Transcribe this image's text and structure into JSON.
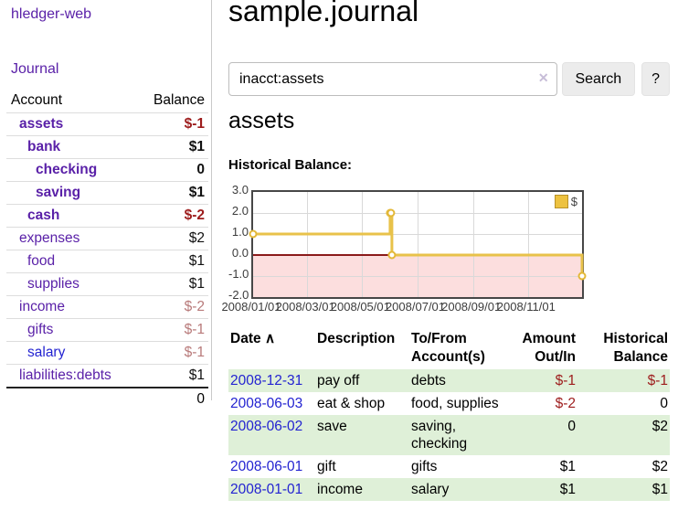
{
  "app": {
    "brand": "hledger-web",
    "nav_journal": "Journal"
  },
  "sidebar": {
    "header": {
      "account": "Account",
      "balance": "Balance"
    },
    "rows": [
      {
        "account": "assets",
        "balance": "$-1"
      },
      {
        "account": "bank",
        "balance": "$1"
      },
      {
        "account": "checking",
        "balance": "0"
      },
      {
        "account": "saving",
        "balance": "$1"
      },
      {
        "account": "cash",
        "balance": "$-2"
      },
      {
        "account": "expenses",
        "balance": "$2"
      },
      {
        "account": "food",
        "balance": "$1"
      },
      {
        "account": "supplies",
        "balance": "$1"
      },
      {
        "account": "income",
        "balance": "$-2"
      },
      {
        "account": "gifts",
        "balance": "$-1"
      },
      {
        "account": "salary",
        "balance": "$-1"
      },
      {
        "account": "liabilities:debts",
        "balance": "$1"
      }
    ],
    "total": "0"
  },
  "header": {
    "title": "sample.journal"
  },
  "search": {
    "value": "inacct:assets",
    "clear_icon": "✕",
    "search_button": "Search",
    "help_button": "?"
  },
  "account_page": {
    "heading": "assets",
    "chart_label": "Historical Balance:"
  },
  "chart_data": {
    "type": "line",
    "step": true,
    "title": "Historical Balance",
    "legend_position": "top-right",
    "legend_label": "$",
    "line_color": "#e8c24a",
    "marker_color": "#e3b838",
    "negative_region_color": "#fcdede",
    "zero_line_color": "#8b1a1a",
    "ylim": [
      -2,
      3
    ],
    "x_range_days": [
      0,
      365
    ],
    "y_ticks": [
      "3.0",
      "2.0",
      "1.0",
      "0.0",
      "-1.0",
      "-2.0"
    ],
    "y_tick_values": [
      3,
      2,
      1,
      0,
      -1,
      -2
    ],
    "x_ticks": [
      {
        "label": "2008/01/01",
        "day": 0
      },
      {
        "label": "2008/03/01",
        "day": 60
      },
      {
        "label": "2008/05/01",
        "day": 121
      },
      {
        "label": "2008/07/01",
        "day": 182
      },
      {
        "label": "2008/09/01",
        "day": 244
      },
      {
        "label": "2008/11/01",
        "day": 305
      }
    ],
    "series": [
      {
        "name": "$",
        "points": [
          {
            "date": "2008-01-01",
            "day": 0,
            "value": 1
          },
          {
            "date": "2008-06-01",
            "day": 152,
            "value": 2
          },
          {
            "date": "2008-06-02",
            "day": 153,
            "value": 2
          },
          {
            "date": "2008-06-03",
            "day": 154,
            "value": 0
          },
          {
            "date": "2008-12-31",
            "day": 365,
            "value": -1
          }
        ]
      }
    ]
  },
  "register": {
    "sort_icon": "∧",
    "columns": {
      "date": "Date",
      "description": "Description",
      "accounts": "To/From Account(s)",
      "amount": "Amount Out/In",
      "balance": "Historical Balance"
    },
    "rows": [
      {
        "date": "2008-12-31",
        "description": "pay off",
        "accounts": "debts",
        "amount": "$-1",
        "balance": "$-1"
      },
      {
        "date": "2008-06-03",
        "description": "eat & shop",
        "accounts": "food, supplies",
        "amount": "$-2",
        "balance": "0"
      },
      {
        "date": "2008-06-02",
        "description": "save",
        "accounts": "saving, checking",
        "amount": "0",
        "balance": "$2"
      },
      {
        "date": "2008-06-01",
        "description": "gift",
        "accounts": "gifts",
        "amount": "$1",
        "balance": "$2"
      },
      {
        "date": "2008-01-01",
        "description": "income",
        "accounts": "salary",
        "amount": "$1",
        "balance": "$1"
      }
    ]
  }
}
